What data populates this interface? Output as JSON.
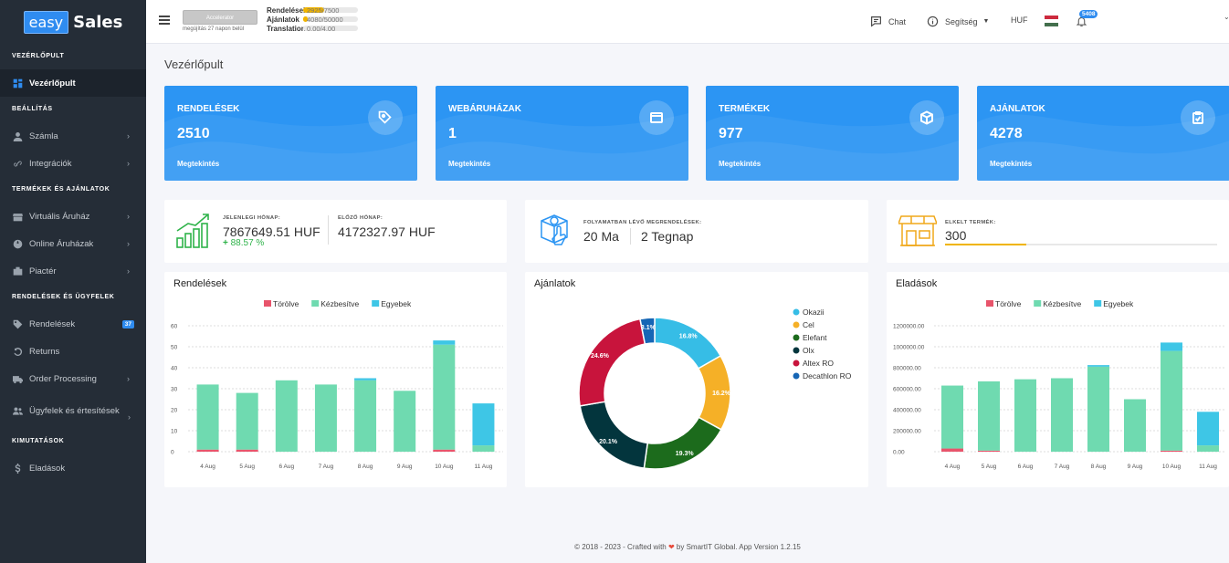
{
  "sidebar": {
    "logo_easy": "easy",
    "logo_sales": "Sales",
    "sections": [
      {
        "title": "VEZÉRLŐPULT",
        "items": [
          {
            "label": "Vezérlőpult",
            "icon": "dashboard-icon",
            "active": true
          }
        ]
      },
      {
        "title": "BEÁLLÍTÁS",
        "items": [
          {
            "label": "Számla",
            "icon": "user-icon",
            "chevron": true
          },
          {
            "label": "Integrációk",
            "icon": "link-icon",
            "chevron": true
          }
        ]
      },
      {
        "title": "TERMÉKEK ÉS AJÁNLATOK",
        "items": [
          {
            "label": "Virtuális Áruház",
            "icon": "store-icon",
            "chevron": true
          },
          {
            "label": "Online Áruházak",
            "icon": "globe-icon",
            "chevron": true
          },
          {
            "label": "Piactér",
            "icon": "marketplace-icon",
            "chevron": true
          }
        ]
      },
      {
        "title": "RENDELÉSEK ÉS ÜGYFELEK",
        "items": [
          {
            "label": "Rendelések",
            "icon": "tag-icon",
            "badge": "37"
          },
          {
            "label": "Returns",
            "icon": "return-icon"
          },
          {
            "label": "Order Processing",
            "icon": "truck-icon",
            "chevron": true
          },
          {
            "label": "Ügyfelek és értesítések",
            "icon": "users-icon",
            "chevron": true
          }
        ]
      },
      {
        "title": "KIMUTATÁSOK",
        "items": [
          {
            "label": "Eladások",
            "icon": "dollar-icon"
          }
        ]
      }
    ]
  },
  "topbar": {
    "plan_badge": "Accelerator",
    "plan_note": "megújítás 27 napon belül",
    "usage": [
      {
        "label": "Rendelések",
        "value": "2925/7500",
        "fraction": 0.39
      },
      {
        "label": "Ajánlatok",
        "value": "4080/50000",
        "fraction": 0.08
      },
      {
        "label": "Translations",
        "value": "0.00/4.00",
        "fraction": 0
      }
    ],
    "chat": "Chat",
    "help": "Segítség",
    "currency": "HUF",
    "notifications": "5408"
  },
  "page_title": "Vezérlőpult",
  "stats": [
    {
      "title": "RENDELÉSEK",
      "value": "2510",
      "link": "Megtekintés",
      "icon": "tag-icon"
    },
    {
      "title": "WEBÁRUHÁZAK",
      "value": "1",
      "link": "Megtekintés",
      "icon": "window-icon"
    },
    {
      "title": "TERMÉKEK",
      "value": "977",
      "link": "Megtekintés",
      "icon": "box-icon"
    },
    {
      "title": "AJÁNLATOK",
      "value": "4278",
      "link": "Megtekintés",
      "icon": "clipboard-icon"
    }
  ],
  "revenue": {
    "current_label": "JELENLEGI HÓNAP:",
    "current_value": "7867649.51 HUF",
    "change": "88.57 %",
    "previous_label": "ELŐZŐ HÓNAP:",
    "previous_value": "4172327.97 HUF"
  },
  "pending": {
    "label": "FOLYAMATBAN LÉVŐ MEGRENDELÉSEK:",
    "today": "20 Ma",
    "yesterday": "2 Tegnap"
  },
  "sold": {
    "label": "ELKELT TERMÉK:",
    "value": "300",
    "fraction": 0.3
  },
  "chart_data": [
    {
      "type": "bar",
      "title": "Rendelések",
      "stacked": true,
      "categories": [
        "4 Aug",
        "5 Aug",
        "6 Aug",
        "7 Aug",
        "8 Aug",
        "9 Aug",
        "10 Aug",
        "11 Aug"
      ],
      "series": [
        {
          "name": "Törölve",
          "color": "#e8546b",
          "values": [
            1,
            1,
            0,
            0,
            0,
            0,
            1,
            0
          ]
        },
        {
          "name": "Kézbesítve",
          "color": "#6fdab0",
          "values": [
            31,
            27,
            34,
            32,
            34,
            29,
            50,
            3
          ]
        },
        {
          "name": "Egyebek",
          "color": "#3ec6e6",
          "values": [
            0,
            0,
            0,
            0,
            1,
            0,
            2,
            20
          ]
        }
      ],
      "ylim": [
        0,
        60
      ],
      "yticks": [
        "0",
        "10",
        "20",
        "30",
        "40",
        "50",
        "60"
      ],
      "legend": "top"
    },
    {
      "type": "pie",
      "title": "Ajánlatok",
      "donut": true,
      "labels": [
        "Okazii",
        "Cel",
        "Elefant",
        "Olx",
        "Altex RO",
        "Decathlon RO"
      ],
      "values": [
        16.8,
        16.2,
        19.3,
        20.1,
        24.6,
        3.1
      ],
      "value_labels": [
        "16.8%",
        "16.2%",
        "19.3%",
        "20.1%",
        "24.6%",
        "3.1%"
      ],
      "colors": [
        "#36bde6",
        "#f5b027",
        "#1c6b1c",
        "#03353d",
        "#c8143c",
        "#1666b5"
      ],
      "legend": "right"
    },
    {
      "type": "bar",
      "title": "Eladások",
      "stacked": true,
      "categories": [
        "4 Aug",
        "5 Aug",
        "6 Aug",
        "7 Aug",
        "8 Aug",
        "9 Aug",
        "10 Aug",
        "11 Aug"
      ],
      "series": [
        {
          "name": "Törölve",
          "color": "#e8546b",
          "values": [
            30000,
            10000,
            0,
            0,
            0,
            0,
            10000,
            0
          ]
        },
        {
          "name": "Kézbesítve",
          "color": "#6fdab0",
          "values": [
            600000,
            660000,
            690000,
            700000,
            810000,
            500000,
            950000,
            60000
          ]
        },
        {
          "name": "Egyebek",
          "color": "#3ec6e6",
          "values": [
            0,
            0,
            0,
            0,
            15000,
            0,
            80000,
            320000
          ]
        }
      ],
      "ylim": [
        0,
        1200000
      ],
      "yticks": [
        "0.00",
        "200000.00",
        "400000.00",
        "600000.00",
        "800000.00",
        "1000000.00",
        "1200000.00"
      ],
      "legend": "top"
    }
  ],
  "footer": {
    "pre": "© 2018 - 2023 - Crafted with",
    "heart": "❤",
    "post": "by SmartIT Global. App Version 1.2.15"
  }
}
